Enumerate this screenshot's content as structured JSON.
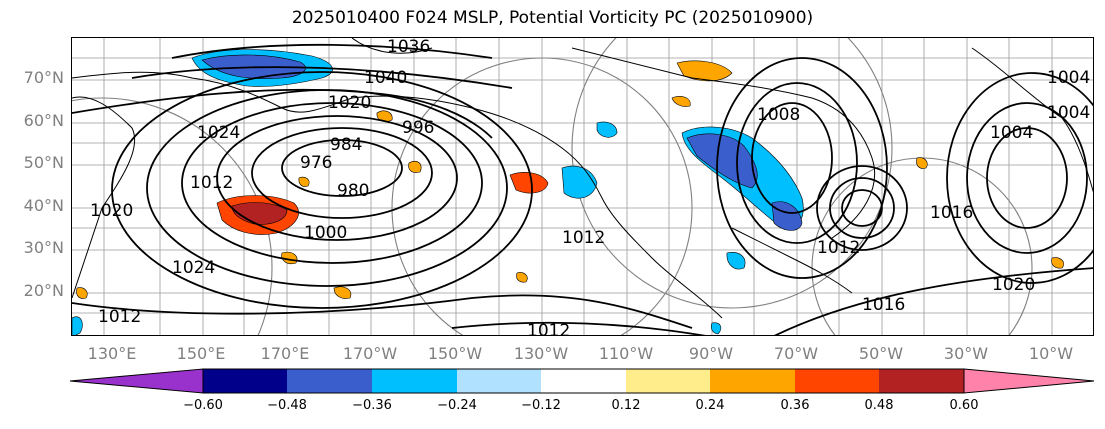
{
  "title": "2025010400 F024 MSLP, Potential Vorticity PC (2025010900)",
  "lat_labels": [
    "70°N",
    "60°N",
    "50°N",
    "40°N",
    "30°N",
    "20°N"
  ],
  "lon_labels": [
    "130°E",
    "150°E",
    "170°E",
    "170°W",
    "150°W",
    "130°W",
    "110°W",
    "90°W",
    "70°W",
    "50°W",
    "30°W",
    "10°W"
  ],
  "isobar_labels": [
    "1036",
    "1040",
    "1020",
    "1024",
    "996",
    "984",
    "976",
    "980",
    "1000",
    "1012",
    "1024",
    "1020",
    "1012",
    "1008",
    "1016",
    "1012",
    "1004",
    "1012",
    "1016",
    "1020",
    "1012",
    "1004",
    "1004"
  ],
  "colorbar": {
    "ticks": [
      "−0.60",
      "−0.48",
      "−0.36",
      "−0.24",
      "−0.12",
      "0.12",
      "0.24",
      "0.36",
      "0.48",
      "0.60"
    ],
    "colors": [
      "#9932cc",
      "#00008b",
      "#3a5fcd",
      "#00bfff",
      "#b0e2ff",
      "#ffffff",
      "#ffec8b",
      "#ffa500",
      "#ff4500",
      "#b22222",
      "#ff82ab",
      "#ff82ab"
    ]
  }
}
